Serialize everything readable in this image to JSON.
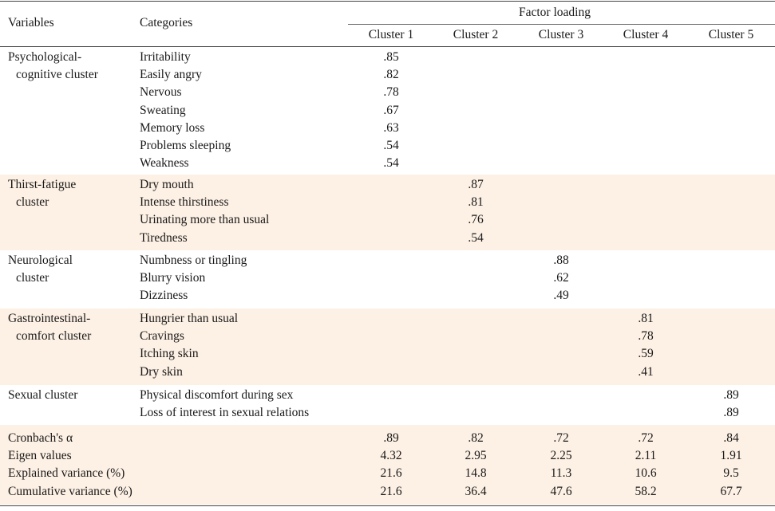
{
  "header": {
    "variables": "Variables",
    "categories": "Categories",
    "factor_loading": "Factor loading",
    "clusters": [
      "Cluster 1",
      "Cluster 2",
      "Cluster 3",
      "Cluster 4",
      "Cluster 5"
    ]
  },
  "groups": [
    {
      "name_lines": [
        "Psychological-",
        "cognitive cluster"
      ],
      "shaded": false,
      "col": 0,
      "items": [
        {
          "category": "Irritability",
          "value": ".85"
        },
        {
          "category": "Easily angry",
          "value": ".82"
        },
        {
          "category": "Nervous",
          "value": ".78"
        },
        {
          "category": "Sweating",
          "value": ".67"
        },
        {
          "category": "Memory loss",
          "value": ".63"
        },
        {
          "category": "Problems sleeping",
          "value": ".54"
        },
        {
          "category": "Weakness",
          "value": ".54"
        }
      ]
    },
    {
      "name_lines": [
        "Thirst-fatigue",
        "cluster"
      ],
      "shaded": true,
      "col": 1,
      "items": [
        {
          "category": "Dry mouth",
          "value": ".87"
        },
        {
          "category": "Intense thirstiness",
          "value": ".81"
        },
        {
          "category": "Urinating more than usual",
          "value": ".76"
        },
        {
          "category": "Tiredness",
          "value": ".54"
        }
      ]
    },
    {
      "name_lines": [
        "Neurological",
        "cluster"
      ],
      "shaded": false,
      "col": 2,
      "items": [
        {
          "category": "Numbness or tingling",
          "value": ".88"
        },
        {
          "category": "Blurry vision",
          "value": ".62"
        },
        {
          "category": "Dizziness",
          "value": ".49"
        }
      ]
    },
    {
      "name_lines": [
        "Gastrointestinal-",
        "comfort cluster"
      ],
      "shaded": true,
      "col": 3,
      "items": [
        {
          "category": "Hungrier than usual",
          "value": ".81"
        },
        {
          "category": "Cravings",
          "value": ".78"
        },
        {
          "category": "Itching skin",
          "value": ".59"
        },
        {
          "category": "Dry skin",
          "value": ".41"
        }
      ]
    },
    {
      "name_lines": [
        "Sexual cluster"
      ],
      "shaded": false,
      "col": 4,
      "items": [
        {
          "category": "Physical discomfort during sex",
          "value": ".89"
        },
        {
          "category": "Loss of interest in sexual relations",
          "value": ".89"
        }
      ]
    }
  ],
  "stats": [
    {
      "label": "Cronbach's α",
      "values": [
        ".89",
        ".82",
        ".72",
        ".72",
        ".84"
      ]
    },
    {
      "label": "Eigen values",
      "values": [
        "4.32",
        "2.95",
        "2.25",
        "2.11",
        "1.91"
      ]
    },
    {
      "label": "Explained variance (%)",
      "values": [
        "21.6",
        "14.8",
        "11.3",
        "10.6",
        "9.5"
      ]
    },
    {
      "label": "Cumulative variance (%)",
      "values": [
        "21.6",
        "36.4",
        "47.6",
        "58.2",
        "67.7"
      ]
    }
  ],
  "colors": {
    "shade": "#fdf0e4",
    "rule": "#444444"
  }
}
